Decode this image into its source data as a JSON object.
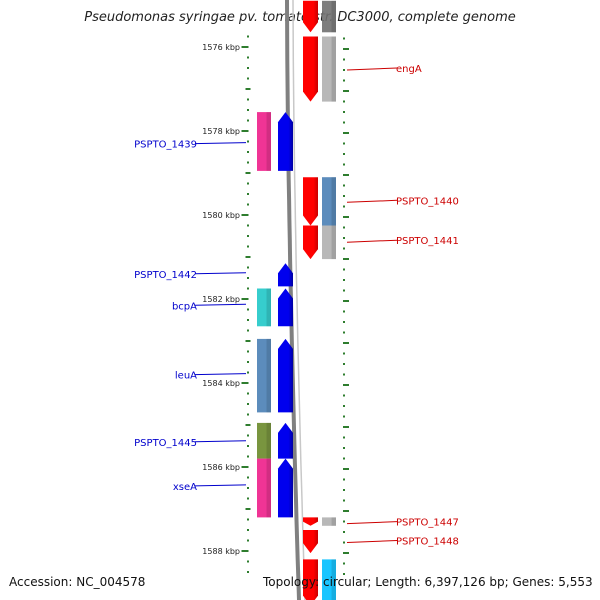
{
  "title": "Pseudomonas syringae pv. tomato str. DC3000, complete genome",
  "footer": {
    "accession": "Accession: NC_004578",
    "summary": "Topology: circular; Length: 6,397,126 bp; Genes: 5,553"
  },
  "ticks": [
    {
      "label": "1576 kbp",
      "kbp": 1576
    },
    {
      "label": "1578 kbp",
      "kbp": 1578
    },
    {
      "label": "1580 kbp",
      "kbp": 1580
    },
    {
      "label": "1582 kbp",
      "kbp": 1582
    },
    {
      "label": "1584 kbp",
      "kbp": 1584
    },
    {
      "label": "1586 kbp",
      "kbp": 1586
    },
    {
      "label": "1588 kbp",
      "kbp": 1588
    }
  ],
  "genes": [
    {
      "name": "engA",
      "strand": "reverse",
      "start_kbp": 1575.75,
      "end_kbp": 1577.3,
      "color": "#ff0000",
      "track_color": "#b0b0b0",
      "label": "engA",
      "label_kbp": 1576.5
    },
    {
      "name": "PSPTO_1439",
      "strand": "forward",
      "start_kbp": 1577.55,
      "end_kbp": 1578.95,
      "color": "#0000ee",
      "track_color": "#ee1e8a",
      "label": "PSPTO_1439",
      "label_kbp": 1578.3
    },
    {
      "name": "PSPTO_1440",
      "strand": "reverse",
      "start_kbp": 1579.1,
      "end_kbp": 1580.25,
      "color": "#ff0000",
      "track_color": "#4a7fb5",
      "label": "PSPTO_1440",
      "label_kbp": 1579.65
    },
    {
      "name": "PSPTO_1441",
      "strand": "reverse",
      "start_kbp": 1580.25,
      "end_kbp": 1581.05,
      "color": "#ff0000",
      "track_color": "#b0b0b0",
      "label": "PSPTO_1441",
      "label_kbp": 1580.6
    },
    {
      "name": "PSPTO_1442",
      "strand": "forward",
      "start_kbp": 1581.15,
      "end_kbp": 1581.7,
      "color": "#0000ee",
      "track_color": null,
      "label": "PSPTO_1442",
      "label_kbp": 1581.4
    },
    {
      "name": "bcpA",
      "strand": "forward",
      "start_kbp": 1581.75,
      "end_kbp": 1582.65,
      "color": "#0000ee",
      "track_color": "#20c8c8",
      "label": "bcpA",
      "label_kbp": 1582.15
    },
    {
      "name": "leuA",
      "strand": "forward",
      "start_kbp": 1582.95,
      "end_kbp": 1584.7,
      "color": "#0000ee",
      "track_color": "#4a7fb5",
      "label": "leuA",
      "label_kbp": 1583.8
    },
    {
      "name": "PSPTO_1445",
      "strand": "forward",
      "start_kbp": 1584.95,
      "end_kbp": 1585.8,
      "color": "#0000ee",
      "track_color": "#6a8a2a",
      "label": "PSPTO_1445",
      "label_kbp": 1585.4
    },
    {
      "name": "xseA",
      "strand": "forward",
      "start_kbp": 1585.8,
      "end_kbp": 1587.2,
      "color": "#0000ee",
      "track_color": "#ee1e8a",
      "label": "xseA",
      "label_kbp": 1586.45
    },
    {
      "name": "PSPTO_1447",
      "strand": "reverse",
      "start_kbp": 1587.2,
      "end_kbp": 1587.4,
      "color": "#ff0000",
      "track_color": "#b0b0b0",
      "label": "PSPTO_1447",
      "label_kbp": 1587.3
    },
    {
      "name": "PSPTO_1448",
      "strand": "reverse",
      "start_kbp": 1587.5,
      "end_kbp": 1588.05,
      "color": "#ff0000",
      "track_color": null,
      "label": "PSPTO_1448",
      "label_kbp": 1587.75
    },
    {
      "name": "top-partial",
      "strand": "reverse",
      "start_kbp": 1574.9,
      "end_kbp": 1575.65,
      "color": "#ff0000",
      "track_color": "#707070",
      "label": null,
      "label_kbp": null
    },
    {
      "name": "bottom-partial",
      "strand": "reverse",
      "start_kbp": 1588.2,
      "end_kbp": 1589.3,
      "color": "#ff0000",
      "track_color": "#00bfff",
      "label": null,
      "label_kbp": null
    }
  ],
  "colors": {
    "forward_label": "#0000cc",
    "reverse_label": "#cc0000",
    "backbone": "#808080",
    "tick": "#2e7d2e"
  }
}
